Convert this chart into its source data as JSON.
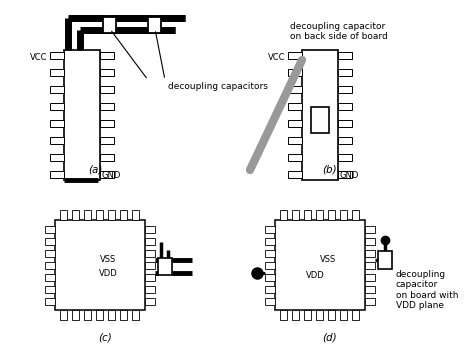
{
  "bg_color": "#ffffff",
  "label_a": "(a)",
  "label_b": "(b)",
  "label_c": "(c)",
  "label_d": "(d)",
  "text_decoupling_caps": "decoupling capacitors",
  "text_decoupling_cap_back": "decoupling capacitor\non back side of board",
  "text_decoupling_cap_vdd": "decoupling\ncapacitor\non board with\nVDD plane",
  "text_vcc": "VCC",
  "text_gnd": "GND",
  "text_vss": "VSS",
  "text_vdd": "VDD",
  "font_size_label": 7.5,
  "font_size_text": 6.5,
  "font_size_pin_label": 6.0
}
